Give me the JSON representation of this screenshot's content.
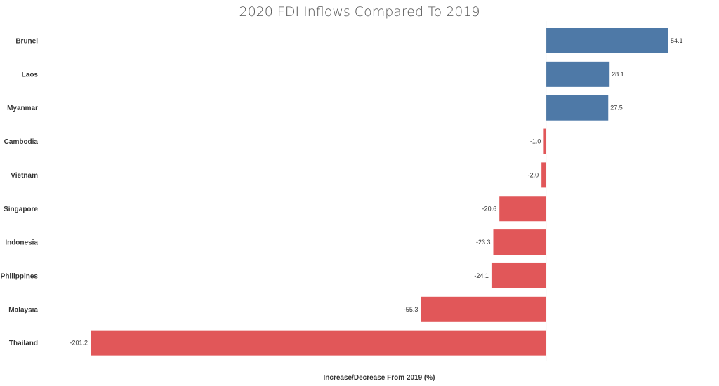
{
  "chart_data": {
    "type": "bar",
    "orientation": "horizontal",
    "title": "2020 FDI Inflows Compared To 2019",
    "xlabel": "Increase/Decrease From 2019 (%)",
    "ylabel": "",
    "categories": [
      "Brunei",
      "Laos",
      "Myanmar",
      "Cambodia",
      "Vietnam",
      "Singapore",
      "Indonesia",
      "Philippines",
      "Malaysia",
      "Thailand"
    ],
    "values": [
      54.1,
      28.1,
      27.5,
      -1.0,
      -2.0,
      -20.6,
      -23.3,
      -24.1,
      -55.3,
      -201.2
    ],
    "value_labels": [
      "54.1",
      "28.1",
      "27.5",
      "-1.0",
      "-2.0",
      "-20.6",
      "-23.3",
      "-24.1",
      "-55.3",
      "-201.2"
    ],
    "xlim": [
      -201.2,
      54.1
    ],
    "grid": false,
    "colors": {
      "positive": "#4e79a7",
      "negative": "#e15759",
      "axis": "#cccccc"
    }
  }
}
